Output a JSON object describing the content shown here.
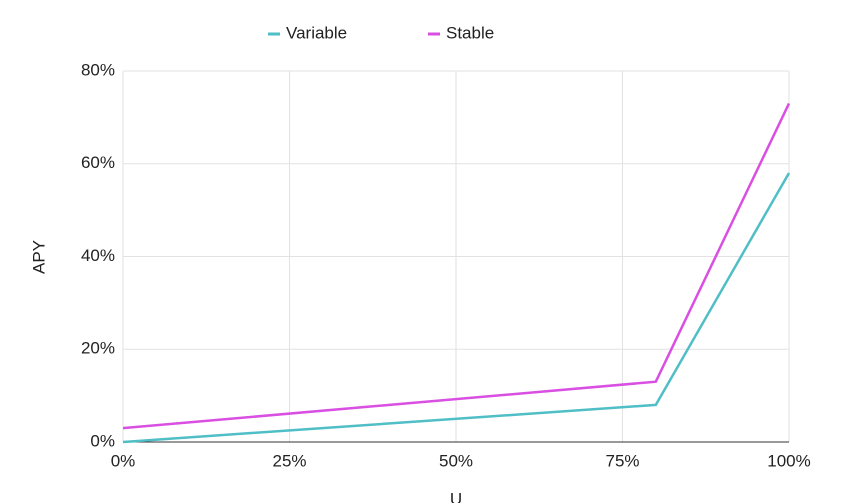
{
  "chart_data": {
    "type": "line",
    "x": [
      0,
      80,
      100
    ],
    "series": [
      {
        "name": "Variable",
        "color": "#4fbec6",
        "values": [
          0,
          8,
          58
        ]
      },
      {
        "name": "Stable",
        "color": "#d94fe2",
        "values": [
          3,
          13,
          73
        ]
      }
    ],
    "xlabel": "U",
    "ylabel": "APY",
    "xlim": [
      0,
      100
    ],
    "xticks": [
      {
        "value": 0,
        "label": "0%"
      },
      {
        "value": 25,
        "label": "25%"
      },
      {
        "value": 50,
        "label": "50%"
      },
      {
        "value": 75,
        "label": "75%"
      },
      {
        "value": 100,
        "label": "100%"
      }
    ],
    "ylim": [
      0,
      80
    ],
    "yticks": [
      {
        "value": 0,
        "label": "0%"
      },
      {
        "value": 20,
        "label": "20%"
      },
      {
        "value": 40,
        "label": "40%"
      },
      {
        "value": 60,
        "label": "60%"
      },
      {
        "value": 80,
        "label": "80%"
      }
    ],
    "grid": true,
    "legend": "top"
  }
}
